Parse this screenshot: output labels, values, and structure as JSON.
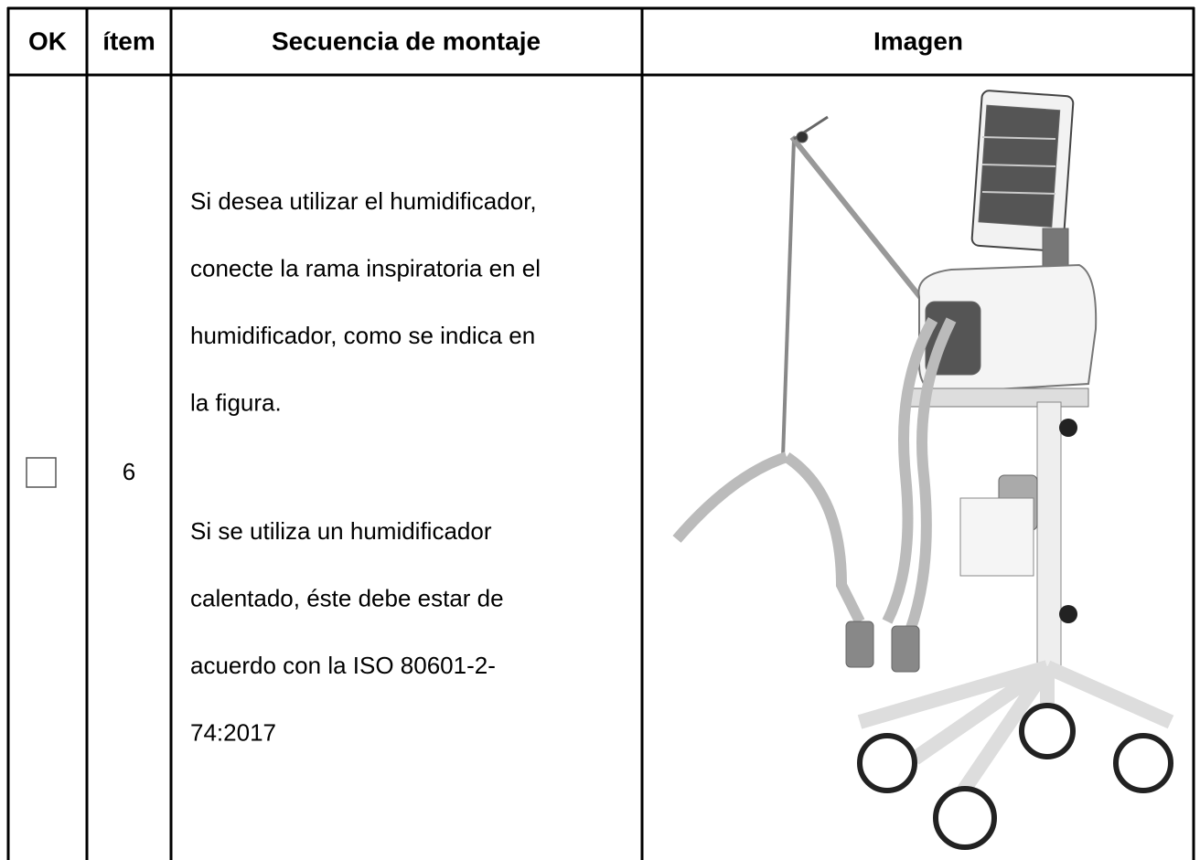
{
  "table": {
    "header": [
      "OK",
      "ítem",
      "Secuencia de montaje",
      "Imagen"
    ],
    "rows": [
      {
        "item": "6",
        "sequence": [
          [
            "Si desea utilizar el humidificador,",
            "conecte la rama inspiratoria en el",
            "humidificador, como se indica en",
            "la figura."
          ],
          [
            "Si se utiliza un humidificador",
            "calentado, éste debe estar de",
            "acuerdo con la ISO  80601-2-",
            "74:2017"
          ]
        ]
      }
    ]
  }
}
